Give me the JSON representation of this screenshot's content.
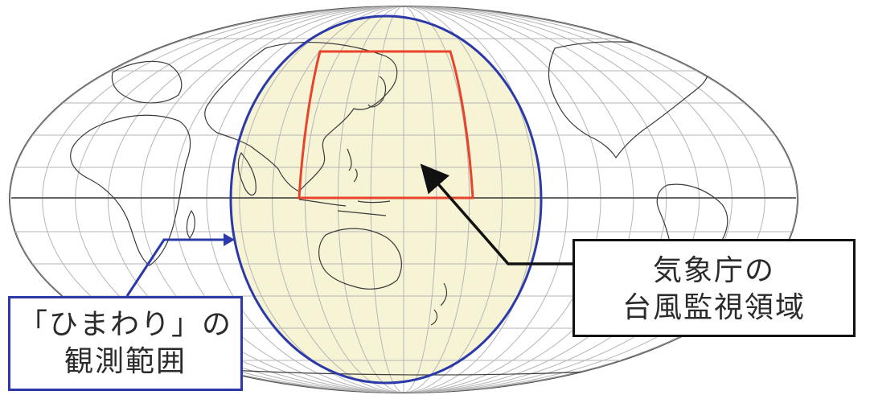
{
  "map": {
    "projection": "mollweide-world",
    "colors": {
      "outline": "#555555",
      "graticule": "#b5b5b5",
      "coast": "#3a3a3a",
      "equator": "#333333",
      "coverage_fill": "#f7f4d6",
      "coverage_stroke": "#2b3aa8",
      "monitor_stroke": "#e8432b",
      "arrow": "#111111"
    }
  },
  "callouts": {
    "jma": {
      "line1": "気象庁の",
      "line2": "台風監視領域",
      "border_color": "#111111"
    },
    "himawari": {
      "line1": "「ひまわり」の",
      "line2": "観測範囲",
      "border_color": "#2b3aa8"
    }
  }
}
